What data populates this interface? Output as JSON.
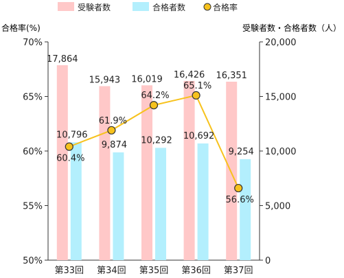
{
  "chart_data": {
    "type": "bar",
    "categories": [
      "第33回",
      "第34回",
      "第35回",
      "第36回",
      "第37回"
    ],
    "series": [
      {
        "name": "受験者数",
        "kind": "bar",
        "axis": "right",
        "color": "#ffc8c8",
        "values": [
          17864,
          15943,
          16019,
          16426,
          16351
        ],
        "labels": [
          "17,864",
          "15,943",
          "16,019",
          "16,426",
          "16,351"
        ]
      },
      {
        "name": "合格者数",
        "kind": "bar",
        "axis": "right",
        "color": "#b3effd",
        "values": [
          10796,
          9874,
          10292,
          10692,
          9254
        ],
        "labels": [
          "10,796",
          "9,874",
          "10,292",
          "10,692",
          "9,254"
        ]
      },
      {
        "name": "合格率",
        "kind": "line",
        "axis": "left",
        "color": "#f7c21d",
        "marker_color": "#f7c21d",
        "values": [
          60.4,
          61.9,
          64.2,
          65.1,
          56.6
        ],
        "labels": [
          "60.4%",
          "61.9%",
          "64.2%",
          "65.1%",
          "56.6%"
        ]
      }
    ],
    "left_axis": {
      "label": "合格率(%)",
      "range": [
        50,
        70
      ],
      "ticks": [
        "50%",
        "55%",
        "60%",
        "65%",
        "70%"
      ]
    },
    "right_axis": {
      "label": "受験者数・合格者数（人）",
      "range": [
        0,
        20000
      ],
      "ticks": [
        "0",
        "5,000",
        "10,000",
        "15,000",
        "20,000"
      ]
    },
    "legend": [
      "受験者数",
      "合格者数",
      "合格率"
    ],
    "legend_position": "top",
    "grid": false
  }
}
